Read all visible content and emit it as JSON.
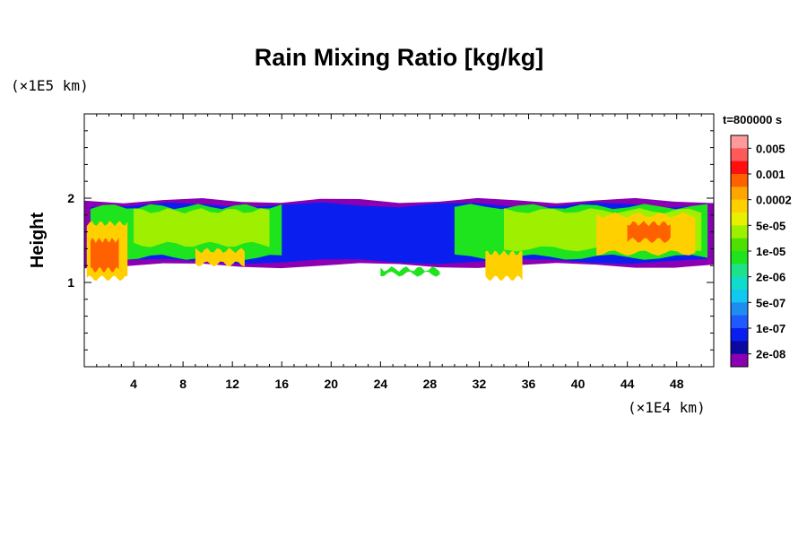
{
  "chart_data": {
    "type": "heatmap",
    "title": "Rain Mixing Ratio [kg/kg]",
    "xlabel": "",
    "ylabel": "Height",
    "x_unit": "(×1E4 km)",
    "y_unit": "(×1E5 km)",
    "time": "t=800000 s",
    "xlim": [
      0,
      51
    ],
    "ylim": [
      0,
      3
    ],
    "x_ticks": [
      4,
      8,
      12,
      16,
      20,
      24,
      28,
      32,
      36,
      40,
      44,
      48
    ],
    "y_ticks": [
      1,
      2
    ],
    "colorbar": {
      "labels": [
        "0.005",
        "0.001",
        "0.0002",
        "5e-05",
        "1e-05",
        "2e-06",
        "5e-07",
        "1e-07",
        "2e-08"
      ],
      "colors": [
        "#ff9a9a",
        "#ff5a5a",
        "#ff0f0f",
        "#ff6000",
        "#ffa500",
        "#ffd000",
        "#e6f000",
        "#9ff000",
        "#4de000",
        "#1ee41e",
        "#1ee28a",
        "#10dccb",
        "#10c8f0",
        "#1e8cf0",
        "#1e5aff",
        "#0a1ef0",
        "#0a0aa0",
        "#8c00b4"
      ]
    },
    "regions": [
      {
        "level": "2e-08",
        "x0": 0.0,
        "x1": 51.0,
        "ybot": 1.2,
        "ytop": 1.97
      },
      {
        "level": "1e-07",
        "x0": 0.5,
        "x1": 50.5,
        "ybot": 1.25,
        "ytop": 1.92
      },
      {
        "level": "1e-05",
        "x0": 0.5,
        "x1": 16.0,
        "ybot": 1.3,
        "ytop": 1.9
      },
      {
        "level": "1e-05",
        "x0": 30.0,
        "x1": 50.5,
        "ybot": 1.3,
        "ytop": 1.9
      },
      {
        "level": "5e-05",
        "x0": 4.0,
        "x1": 15.0,
        "ybot": 1.45,
        "ytop": 1.85
      },
      {
        "level": "5e-05",
        "x0": 34.0,
        "x1": 50.0,
        "ybot": 1.4,
        "ytop": 1.85
      },
      {
        "level": "0.0002",
        "x0": 41.5,
        "x1": 49.5,
        "ybot": 1.35,
        "ytop": 1.8
      },
      {
        "level": "0.001",
        "x0": 44.0,
        "x1": 47.5,
        "ybot": 1.5,
        "ytop": 1.7
      },
      {
        "level": "0.0002",
        "x0": 0.2,
        "x1": 3.5,
        "ybot": 1.05,
        "ytop": 1.7
      },
      {
        "level": "0.001",
        "x0": 0.5,
        "x1": 2.8,
        "ybot": 1.15,
        "ytop": 1.5
      },
      {
        "level": "0.0002",
        "x0": 32.5,
        "x1": 35.5,
        "ybot": 1.05,
        "ytop": 1.35
      },
      {
        "level": "0.0002",
        "x0": 9.0,
        "x1": 13.0,
        "ybot": 1.22,
        "ytop": 1.38
      },
      {
        "level": "1e-05",
        "x0": 24.0,
        "x1": 28.8,
        "ybot": 1.1,
        "ytop": 1.16
      }
    ]
  }
}
